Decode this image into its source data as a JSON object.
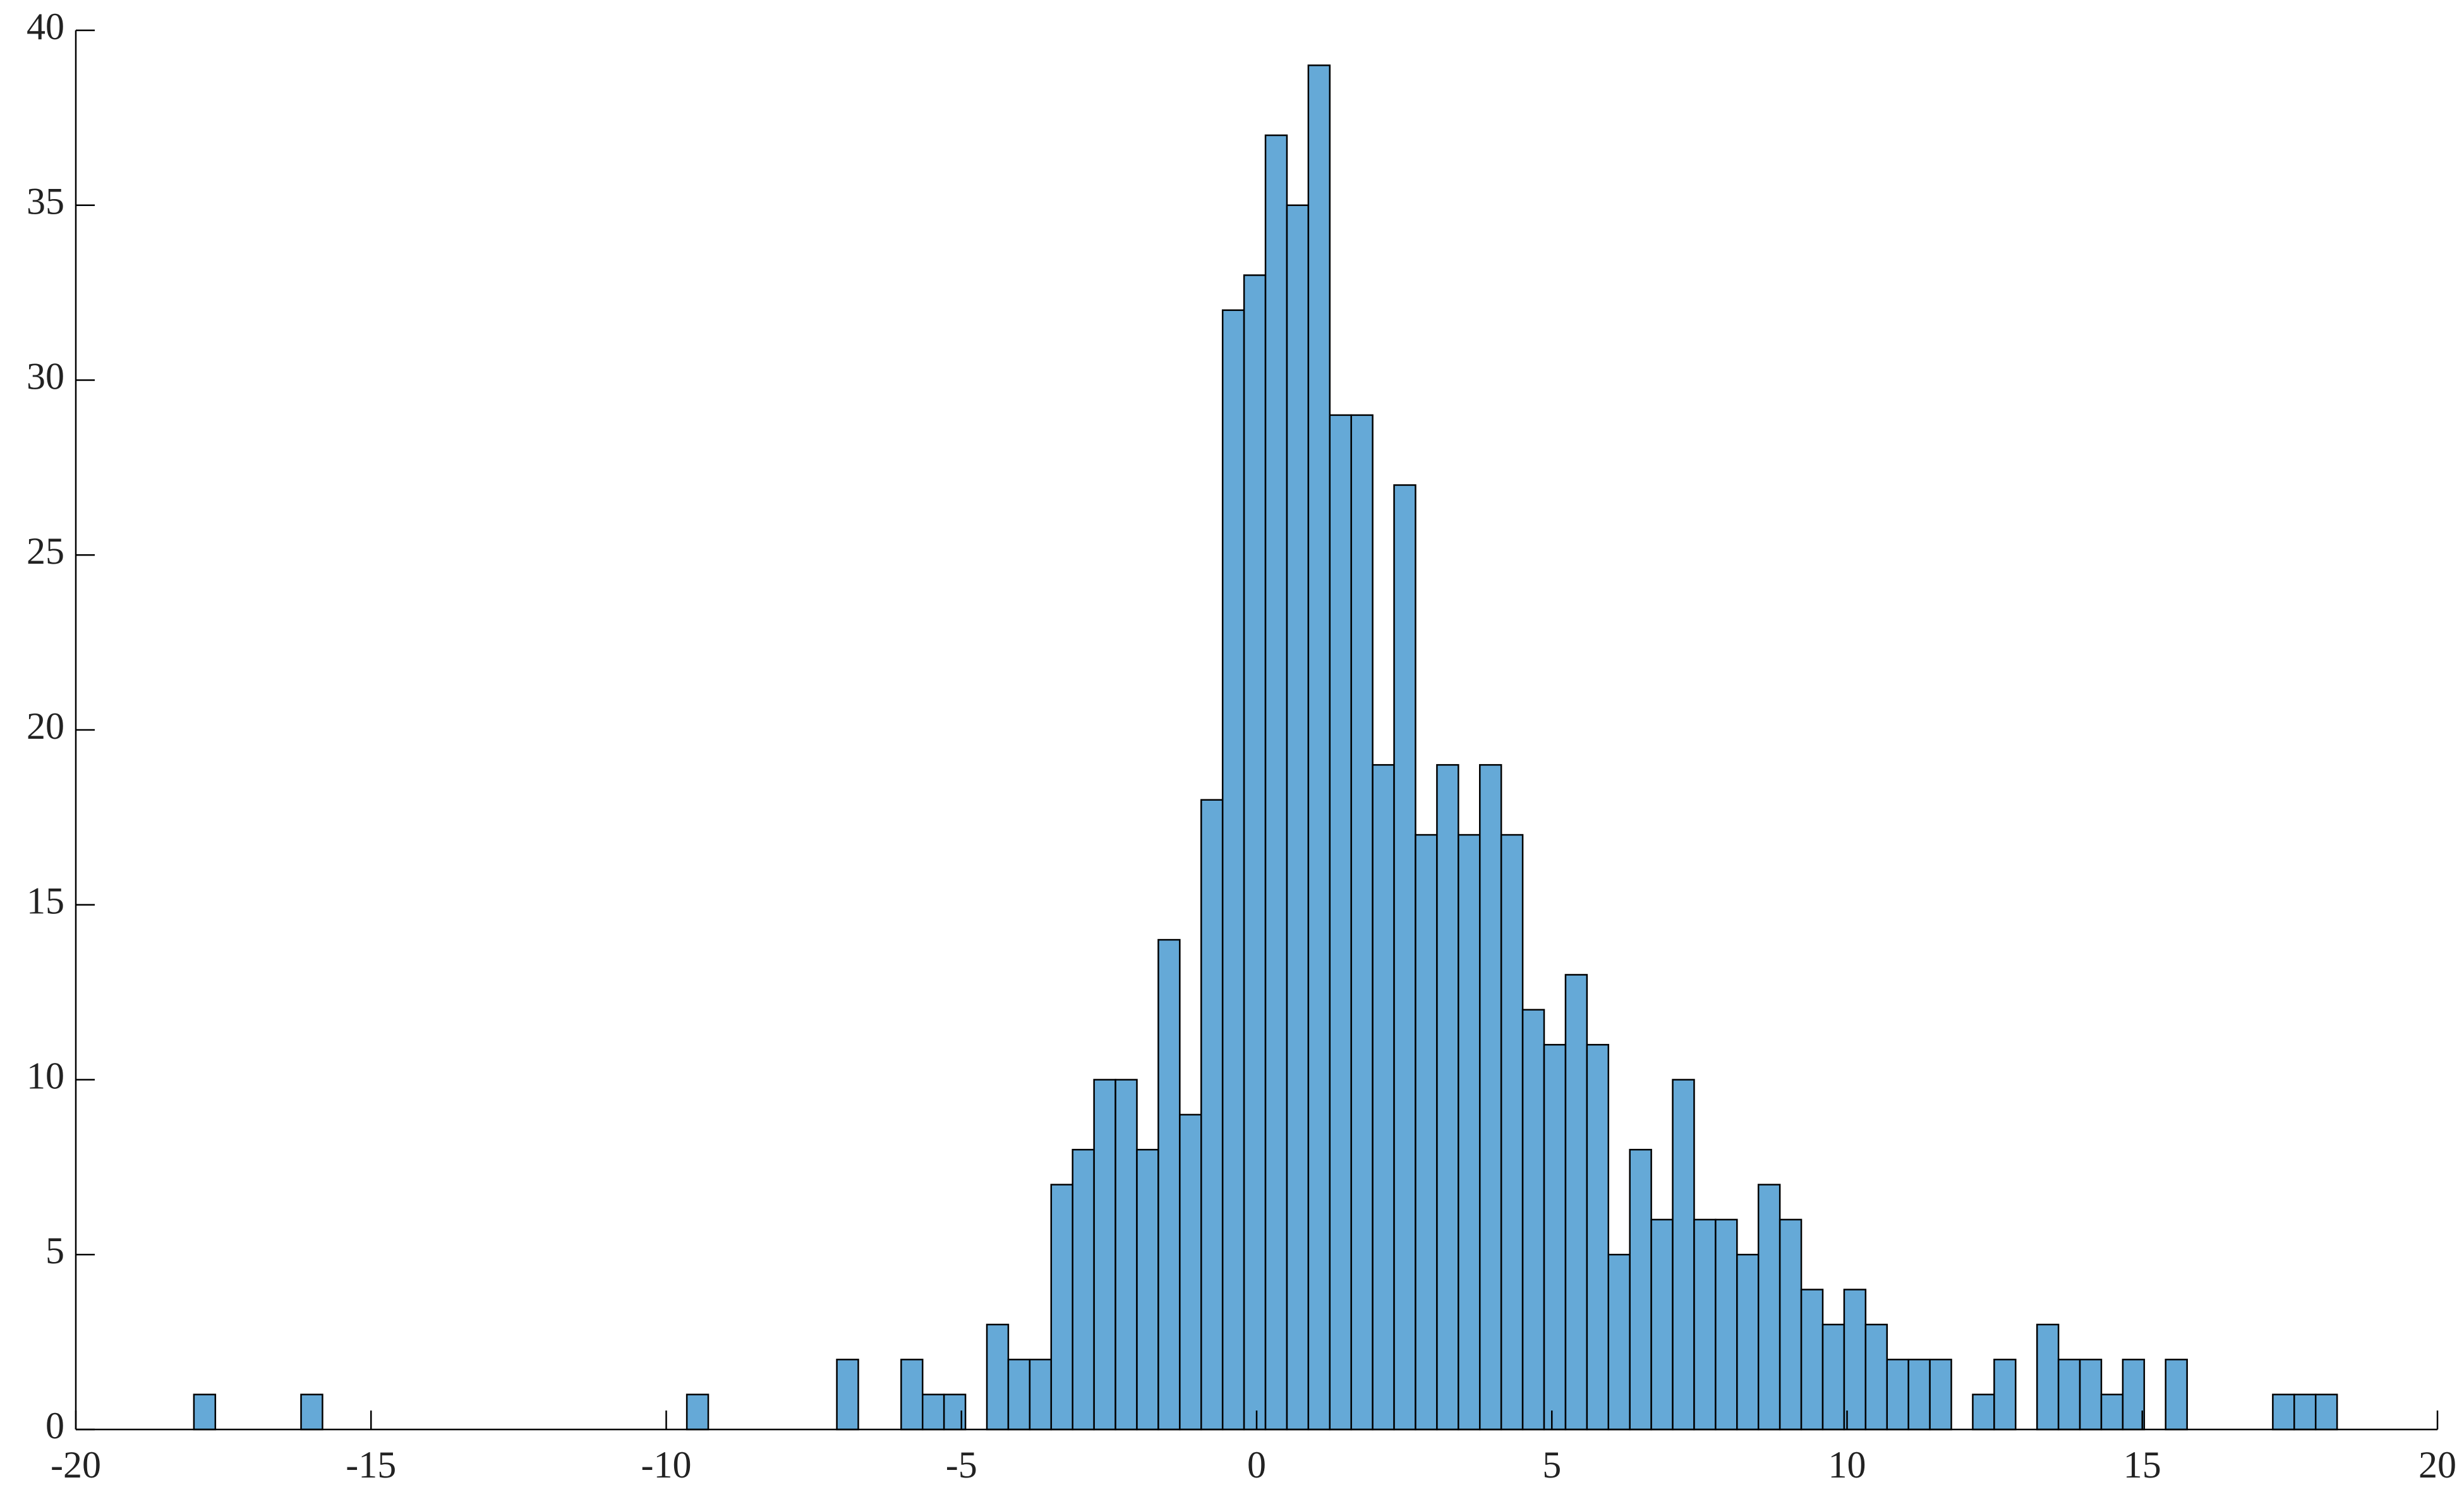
{
  "chart_data": {
    "type": "histogram",
    "bins": [
      -18,
      -17.637,
      -17.274,
      -16.911,
      -16.548,
      -16.185,
      -15.822,
      -15.459,
      -15.096,
      -14.733,
      -14.37,
      -14.007,
      -13.644,
      -13.281,
      -12.918,
      -12.555,
      -12.192,
      -11.829,
      -11.466,
      -11.103,
      -10.74,
      -10.377,
      -10.014,
      -9.651,
      -9.288,
      -8.925,
      -8.562,
      -8.199,
      -7.836,
      -7.473,
      -7.11,
      -6.747,
      -6.384,
      -6.021,
      -5.658,
      -5.295,
      -4.932,
      -4.569,
      -4.206,
      -3.843,
      -3.48,
      -3.117,
      -2.754,
      -2.391,
      -2.028,
      -1.665,
      -1.302,
      -0.939,
      -0.576,
      -0.213,
      0.15,
      0.513,
      0.876,
      1.239,
      1.602,
      1.965,
      2.328,
      2.691,
      3.054,
      3.417,
      3.78,
      4.143,
      4.506,
      4.869,
      5.232,
      5.595,
      5.958,
      6.321,
      6.684,
      7.047,
      7.41,
      7.773,
      8.136,
      8.499,
      8.862,
      9.225,
      9.588,
      9.951,
      10.314,
      10.677,
      11.04,
      11.403,
      11.766,
      12.129,
      12.492,
      12.855,
      13.218,
      13.581,
      13.944,
      14.307,
      14.67,
      15.033,
      15.396,
      15.759,
      16.122,
      16.485,
      16.848,
      17.211,
      17.574,
      17.937,
      18.3
    ],
    "values": [
      1,
      0,
      0,
      0,
      0,
      1,
      0,
      0,
      0,
      0,
      0,
      0,
      0,
      0,
      0,
      0,
      0,
      0,
      0,
      0,
      0,
      0,
      0,
      1,
      0,
      0,
      0,
      0,
      0,
      0,
      2,
      0,
      0,
      2,
      1,
      1,
      0,
      3,
      2,
      2,
      7,
      8,
      10,
      10,
      8,
      14,
      9,
      18,
      32,
      33,
      37,
      35,
      39,
      29,
      29,
      19,
      27,
      17,
      19,
      17,
      19,
      17,
      12,
      11,
      13,
      11,
      5,
      8,
      6,
      10,
      6,
      6,
      5,
      7,
      6,
      4,
      3,
      4,
      3,
      2,
      2,
      2,
      0,
      1,
      2,
      0,
      3,
      2,
      2,
      1,
      2,
      0,
      2,
      0,
      0,
      0,
      0,
      1,
      1,
      1
    ],
    "color": "#65a9d7",
    "xlim": [
      -20,
      20
    ],
    "xticks": [
      -20,
      -15,
      -10,
      -5,
      0,
      5,
      10,
      15,
      20
    ],
    "ylim": [
      0,
      40
    ],
    "yticks": [
      0,
      5,
      10,
      15,
      20,
      25,
      30,
      35,
      40
    ]
  }
}
